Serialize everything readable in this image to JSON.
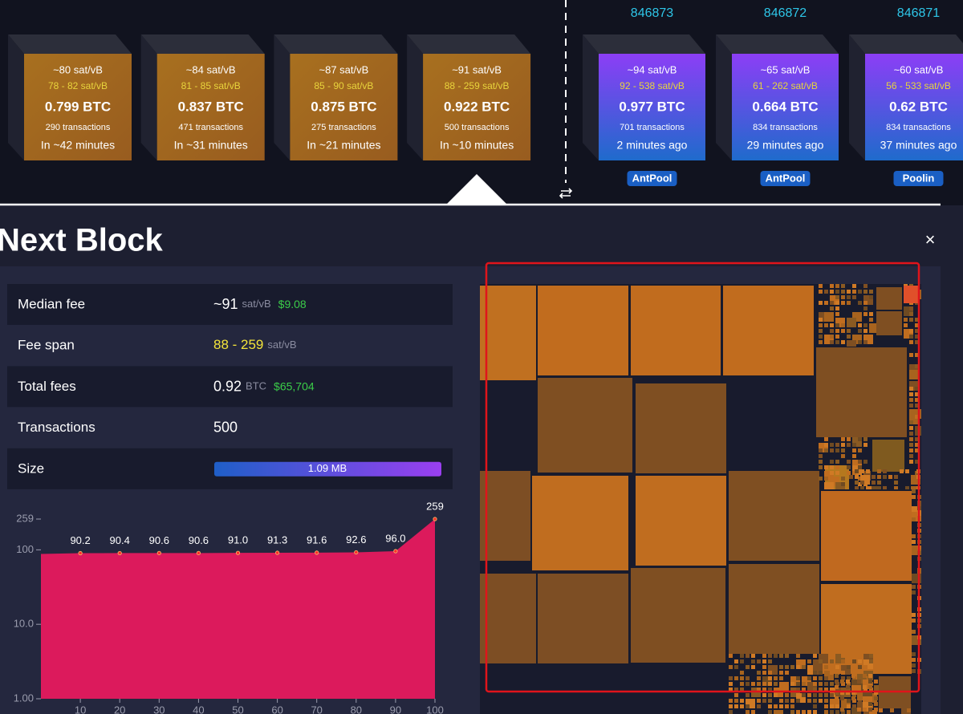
{
  "mempool_blocks": [
    {
      "fee": "~80 sat/vB",
      "range": "78 - 82 sat/vB",
      "total": "0.799 BTC",
      "transactions": "290 transactions",
      "eta": "In ~42 minutes"
    },
    {
      "fee": "~84 sat/vB",
      "range": "81 - 85 sat/vB",
      "total": "0.837 BTC",
      "transactions": "471 transactions",
      "eta": "In ~31 minutes"
    },
    {
      "fee": "~87 sat/vB",
      "range": "85 - 90 sat/vB",
      "total": "0.875 BTC",
      "transactions": "275 transactions",
      "eta": "In ~21 minutes"
    },
    {
      "fee": "~91 sat/vB",
      "range": "88 - 259 sat/vB",
      "total": "0.922 BTC",
      "transactions": "500 transactions",
      "eta": "In ~10 minutes"
    }
  ],
  "blocks": [
    {
      "height": "846873",
      "fee": "~94 sat/vB",
      "range": "92 - 538 sat/vB",
      "total": "0.977 BTC",
      "transactions": "701 transactions",
      "time": "2 minutes ago",
      "pool": "AntPool"
    },
    {
      "height": "846872",
      "fee": "~65 sat/vB",
      "range": "61 - 262 sat/vB",
      "total": "0.664 BTC",
      "transactions": "834 transactions",
      "time": "29 minutes ago",
      "pool": "AntPool"
    },
    {
      "height": "846871",
      "fee": "~60 sat/vB",
      "range": "56 - 533 sat/vB",
      "total": "0.62 BTC",
      "transactions": "834 transactions",
      "time": "37 minutes ago",
      "pool": "Poolin"
    }
  ],
  "title": "Next Block",
  "close": "×",
  "details": {
    "rows": [
      {
        "label": "Median fee",
        "value": "~91",
        "unit": "sat/vB",
        "fiat": "$9.08"
      },
      {
        "label": "Fee span",
        "range": "88 - 259",
        "unit": "sat/vB"
      },
      {
        "label": "Total fees",
        "value": "0.92",
        "unit": "BTC",
        "fiat": "$65,704"
      },
      {
        "label": "Transactions",
        "value": "500"
      },
      {
        "label": "Size",
        "bar": "1.09 MB"
      }
    ]
  },
  "chart_data": {
    "type": "area",
    "yscale": "log",
    "color": "#dc1a5c",
    "x": [
      0,
      10,
      20,
      30,
      40,
      50,
      60,
      70,
      80,
      90,
      100
    ],
    "values": [
      88,
      90.2,
      90.4,
      90.6,
      90.6,
      91.0,
      91.3,
      91.6,
      92.6,
      96.0,
      259
    ],
    "value_labels": [
      null,
      "90.2",
      "90.4",
      "90.6",
      "90.6",
      "91.0",
      "91.3",
      "91.6",
      "92.6",
      "96.0",
      "259"
    ],
    "xlim": [
      0,
      100
    ],
    "xticks": [
      10,
      20,
      30,
      40,
      50,
      60,
      70,
      80,
      90,
      100
    ],
    "ylim": [
      1,
      259
    ],
    "yticks": [
      {
        "value": 1,
        "label": "1.00"
      },
      {
        "value": 10,
        "label": "10.0"
      },
      100,
      259
    ]
  }
}
